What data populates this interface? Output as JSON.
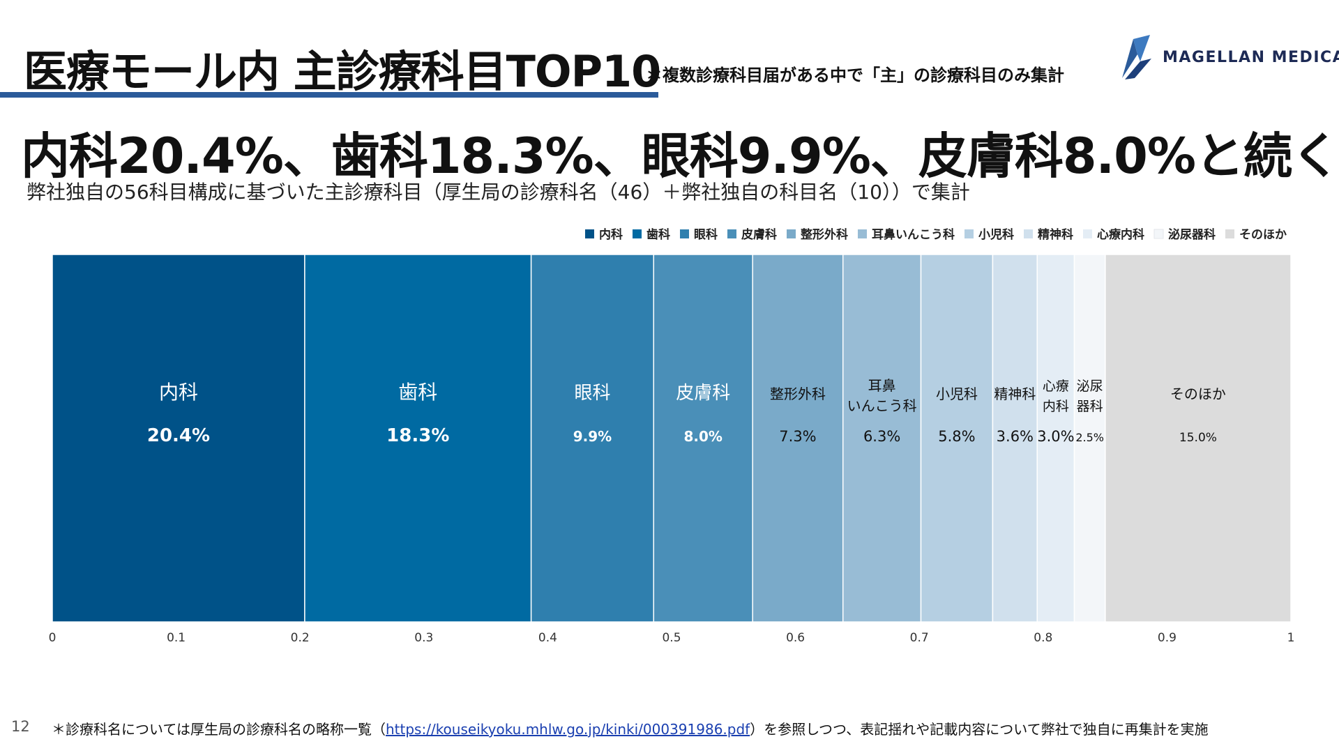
{
  "header": {
    "title": "医療モール内 主診療科目TOP10",
    "title_note": "＊複数診療科目届がある中で「主」の診療科目のみ集計",
    "logo_text": "MAGELLAN MEDICAL"
  },
  "headline": "内科20.4%、歯科18.3%、眼科9.9%、皮膚科8.0%と続く",
  "subhead": "弊社独自の56科目構成に基づいた主診療科目（厚生局の診療科名（46）＋弊社独自の科目名（10））で集計",
  "chart_data": {
    "type": "bar",
    "orientation": "horizontal-stacked-100",
    "x": [
      0,
      0.1,
      0.2,
      0.3,
      0.4,
      0.5,
      0.6,
      0.7,
      0.8,
      0.9,
      1
    ],
    "xlim": [
      0,
      1
    ],
    "legend_position": "top-right",
    "series": [
      {
        "name": "内科",
        "value": 0.204,
        "label": "20.4%",
        "display": [
          "内科"
        ],
        "color": "#005288"
      },
      {
        "name": "歯科",
        "value": 0.183,
        "label": "18.3%",
        "display": [
          "歯科"
        ],
        "color": "#006aa2"
      },
      {
        "name": "眼科",
        "value": 0.099,
        "label": "9.9%",
        "display": [
          "眼科"
        ],
        "color": "#2f7fae"
      },
      {
        "name": "皮膚科",
        "value": 0.08,
        "label": "8.0%",
        "display": [
          "皮膚科"
        ],
        "color": "#4a8fb8"
      },
      {
        "name": "整形外科",
        "value": 0.073,
        "label": "7.3%",
        "display": [
          "整形外科"
        ],
        "color": "#7aaac9"
      },
      {
        "name": "耳鼻いんこう科",
        "value": 0.063,
        "label": "6.3%",
        "display": [
          "耳鼻",
          "いんこう科"
        ],
        "color": "#98bcd5"
      },
      {
        "name": "小児科",
        "value": 0.058,
        "label": "5.8%",
        "display": [
          "小児科"
        ],
        "color": "#b5cfe2"
      },
      {
        "name": "精神科",
        "value": 0.036,
        "label": "3.6%",
        "display": [
          "精神科"
        ],
        "color": "#d0e0ed"
      },
      {
        "name": "心療内科",
        "value": 0.03,
        "label": "3.0%",
        "display": [
          "心療",
          "内科"
        ],
        "color": "#e4edf5"
      },
      {
        "name": "泌尿器科",
        "value": 0.025,
        "label": "2.5%",
        "display": [
          "泌尿",
          "器科"
        ],
        "color": "#f3f6f9"
      },
      {
        "name": "そのほか",
        "value": 0.15,
        "label": "15.0%",
        "display": [
          "そのほか"
        ],
        "color": "#dcdcdc"
      }
    ]
  },
  "footer": {
    "page_number": "12",
    "note_prefix": "＊診療科名については厚生局の診療科名の略称一覧（",
    "note_link": "https://kouseikyoku.mhlw.go.jp/kinki/000391986.pdf",
    "note_suffix": "）を参照しつつ、表記揺れや記載内容について弊社で独自に再集計を実施"
  }
}
